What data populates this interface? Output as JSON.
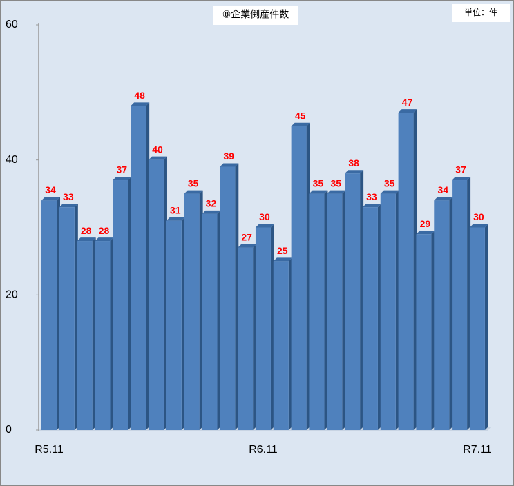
{
  "chart_data": {
    "type": "bar",
    "title": "⑧企業倒産件数",
    "unit_label": "単位：件",
    "categories": [
      "R5.11",
      null,
      null,
      null,
      null,
      null,
      null,
      null,
      null,
      null,
      null,
      null,
      "R6.11",
      null,
      null,
      null,
      null,
      null,
      null,
      null,
      null,
      null,
      null,
      null,
      "R7.11"
    ],
    "values": [
      34,
      33,
      28,
      28,
      37,
      48,
      40,
      31,
      35,
      32,
      39,
      27,
      30,
      25,
      45,
      35,
      35,
      38,
      33,
      35,
      47,
      29,
      34,
      37,
      30
    ],
    "color": "#4f81bd",
    "label_color": "#ff0000",
    "ylim": [
      0,
      60
    ],
    "yticks": [
      0,
      20,
      40,
      60
    ],
    "grid": false
  }
}
